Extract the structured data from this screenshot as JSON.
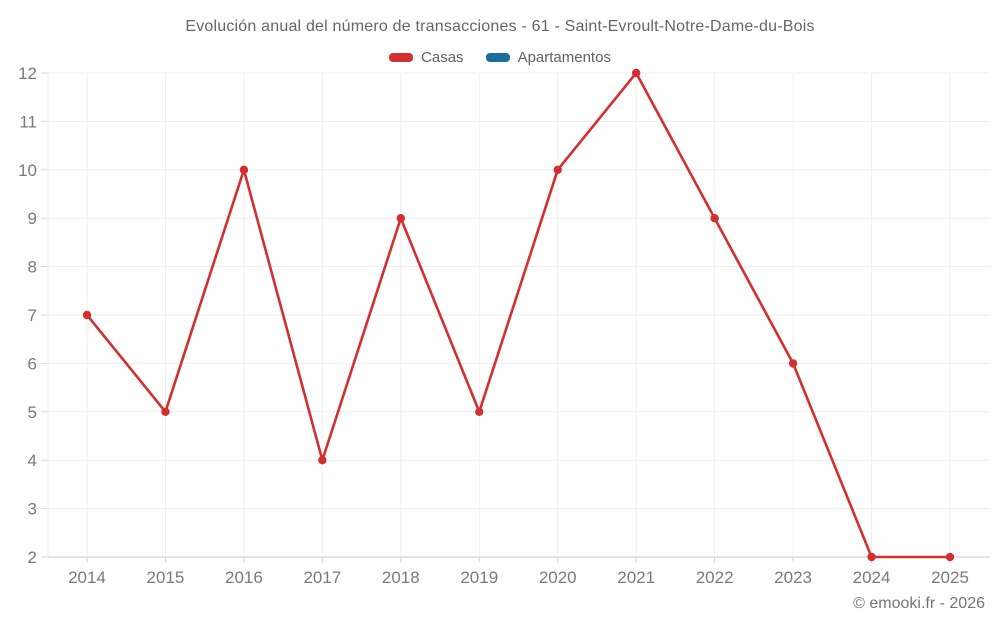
{
  "header": {
    "title": "Evolución anual del número de transacciones - 61 - Saint-Evroult-Notre-Dame-du-Bois"
  },
  "legend": {
    "items": [
      {
        "label": "Casas",
        "color": "#d32f2f"
      },
      {
        "label": "Apartamentos",
        "color": "#1a6d9e"
      }
    ]
  },
  "footer": {
    "copyright": "© emooki.fr - 2026"
  },
  "chart_data": {
    "type": "line",
    "title": "Evolución anual del número de transacciones - 61 - Saint-Evroult-Notre-Dame-du-Bois",
    "categories": [
      "2014",
      "2015",
      "2016",
      "2017",
      "2018",
      "2019",
      "2020",
      "2021",
      "2022",
      "2023",
      "2024",
      "2025"
    ],
    "series": [
      {
        "name": "Casas",
        "color": "#d32f2f",
        "values": [
          7,
          5,
          10,
          4,
          9,
          5,
          10,
          12,
          9,
          6,
          2,
          2
        ]
      },
      {
        "name": "Apartamentos",
        "color": "#1a6d9e",
        "values": []
      }
    ],
    "xlabel": "",
    "ylabel": "",
    "ylim": [
      2,
      12
    ],
    "yticks": [
      2,
      3,
      4,
      5,
      6,
      7,
      8,
      9,
      10,
      11,
      12
    ],
    "grid": true,
    "legend_position": "top",
    "marker": "circle"
  }
}
